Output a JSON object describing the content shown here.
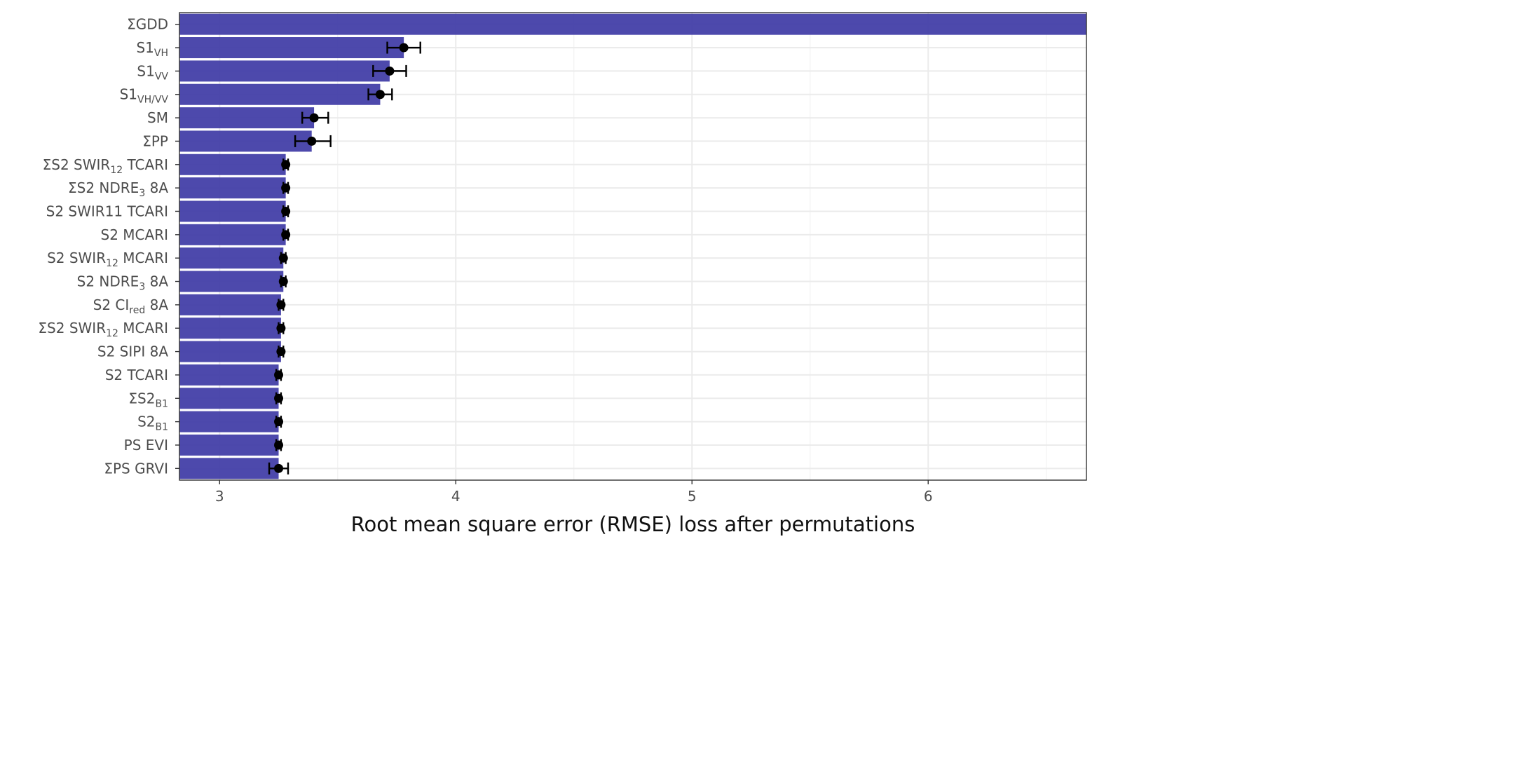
{
  "chart_data": {
    "type": "bar",
    "orientation": "horizontal",
    "title": "",
    "xlabel": "Root mean square error (RMSE) loss after permutations",
    "ylabel": "",
    "xlim": [
      2.83,
      6.67
    ],
    "x_ticks": [
      "3",
      "4",
      "5",
      "6"
    ],
    "grid": true,
    "legend": "none",
    "bar_color": "#3f3ba6",
    "point_color": "#000000",
    "categories": [
      {
        "base": "ΣGDD",
        "sub": ""
      },
      {
        "base": "S1",
        "sub": "VH"
      },
      {
        "base": "S1",
        "sub": "VV"
      },
      {
        "base": "S1",
        "sub": "VH/VV"
      },
      {
        "base": "SM",
        "sub": ""
      },
      {
        "base": "ΣPP",
        "sub": ""
      },
      {
        "base": "ΣS2 SWIR",
        "sub": "12",
        "suffix": " TCARI"
      },
      {
        "base": "ΣS2 NDRE",
        "sub": "3",
        "suffix": " 8A"
      },
      {
        "base": "S2 SWIR11 TCARI",
        "sub": ""
      },
      {
        "base": "S2 MCARI",
        "sub": ""
      },
      {
        "base": "S2 SWIR",
        "sub": "12",
        "suffix": " MCARI"
      },
      {
        "base": "S2 NDRE",
        "sub": "3",
        "suffix": " 8A"
      },
      {
        "base": "S2 CI",
        "sub": "red",
        "suffix": " 8A"
      },
      {
        "base": "ΣS2 SWIR",
        "sub": "12",
        "suffix": " MCARI"
      },
      {
        "base": "S2 SIPI 8A",
        "sub": ""
      },
      {
        "base": "S2 TCARI",
        "sub": ""
      },
      {
        "base": "ΣS2",
        "sub": "B1"
      },
      {
        "base": "S2",
        "sub": "B1"
      },
      {
        "base": "PS EVI",
        "sub": ""
      },
      {
        "base": "ΣPS GRVI",
        "sub": ""
      }
    ],
    "values": [
      6.67,
      3.78,
      3.72,
      3.68,
      3.4,
      3.39,
      3.28,
      3.28,
      3.28,
      3.28,
      3.27,
      3.27,
      3.26,
      3.26,
      3.26,
      3.25,
      3.25,
      3.25,
      3.25,
      3.25
    ],
    "error_low": [
      null,
      3.71,
      3.65,
      3.63,
      3.35,
      3.32,
      3.27,
      3.27,
      3.27,
      3.27,
      3.26,
      3.26,
      3.25,
      3.25,
      3.25,
      3.24,
      3.24,
      3.24,
      3.24,
      3.21
    ],
    "error_high": [
      null,
      3.85,
      3.79,
      3.73,
      3.46,
      3.47,
      3.29,
      3.29,
      3.29,
      3.29,
      3.28,
      3.28,
      3.27,
      3.27,
      3.27,
      3.26,
      3.26,
      3.26,
      3.26,
      3.29
    ]
  }
}
